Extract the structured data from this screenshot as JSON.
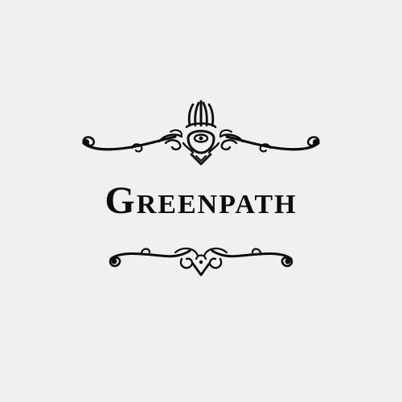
{
  "title_card": {
    "area_name": "Greenpath",
    "top_ornament_icon": "crest-flourish-icon",
    "bottom_ornament_icon": "scroll-flourish-icon"
  },
  "colors": {
    "background": "#f0f0f0",
    "ink": "#0c0c0c"
  }
}
